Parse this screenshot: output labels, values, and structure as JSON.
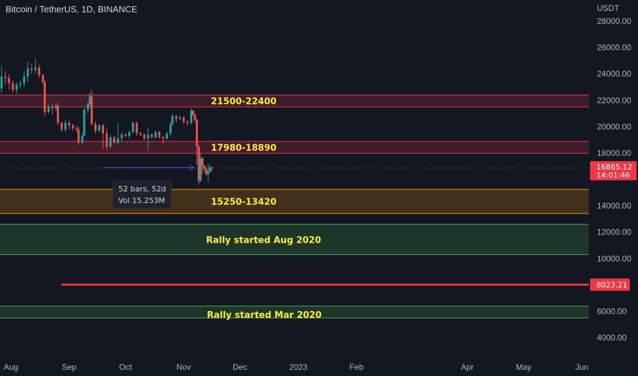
{
  "header": {
    "title": "Bitcoin / TetherUS, 1D, BINANCE"
  },
  "colors": {
    "background": "#131722",
    "up": "#26a69a",
    "down": "#ef5350",
    "red_zone": "#f23645",
    "orange_zone": "#ff9800",
    "green_zone": "#4caf50",
    "label": "#ffeb3b"
  },
  "chart_data": {
    "type": "candlestick",
    "currency": "USDT",
    "ylim": [
      3500,
      29500
    ],
    "y_ticks": [
      {
        "value": 28000,
        "label": "28000.00"
      },
      {
        "value": 26000,
        "label": "26000.00"
      },
      {
        "value": 24000,
        "label": "24000.00"
      },
      {
        "value": 22000,
        "label": "22000.00"
      },
      {
        "value": 20000,
        "label": "20000.00"
      },
      {
        "value": 18000,
        "label": "18000.00"
      },
      {
        "value": 14000,
        "label": "14000.00"
      },
      {
        "value": 12000,
        "label": "12000.00"
      },
      {
        "value": 10000,
        "label": "10000.00"
      },
      {
        "value": 6000,
        "label": "6000.00"
      },
      {
        "value": 4000,
        "label": "4000.00"
      }
    ],
    "x_ticks": [
      {
        "date": "2022-08-01",
        "label": "Aug"
      },
      {
        "date": "2022-09-01",
        "label": "Sep"
      },
      {
        "date": "2022-10-01",
        "label": "Oct"
      },
      {
        "date": "2022-11-01",
        "label": "Nov"
      },
      {
        "date": "2022-12-01",
        "label": "Dec"
      },
      {
        "date": "2023-01-01",
        "label": "2023"
      },
      {
        "date": "2023-02-01",
        "label": "Feb"
      },
      {
        "date": "2023-04-01",
        "label": "Apr"
      },
      {
        "date": "2023-05-01",
        "label": "May"
      },
      {
        "date": "2023-06-01",
        "label": "Jun"
      }
    ],
    "zones": [
      {
        "low": 21500,
        "high": 22400,
        "label": "21500-22400",
        "color": "#f23645"
      },
      {
        "low": 17980,
        "high": 18890,
        "label": "17980-18890",
        "color": "#f23645"
      },
      {
        "low": 13420,
        "high": 15250,
        "label": "15250-13420",
        "color": "#ff9800"
      },
      {
        "low": 10300,
        "high": 12600,
        "label": "Rally started Aug 2020",
        "color": "#4caf50"
      },
      {
        "low": 5500,
        "high": 6400,
        "label": "Rally started Mar 2020",
        "color": "#4caf50"
      }
    ],
    "horizontal_line": {
      "value": 8023.21,
      "label": "8023.21",
      "color": "#f23645",
      "start_date": "2022-08-28"
    },
    "last_price": {
      "value": 16865.12,
      "label": "16865.12",
      "countdown": "14:01:46"
    },
    "measure": {
      "from": "2022-09-19",
      "to": "2022-11-10",
      "value": 16900,
      "bars": "52 bars, 52d",
      "volume": "Vol 15.253M"
    },
    "candles": [
      {
        "date": "2022-07-25",
        "o": 21300,
        "h": 23300,
        "l": 20800,
        "c": 22900
      },
      {
        "date": "2022-07-27",
        "o": 22900,
        "h": 24600,
        "l": 22600,
        "c": 23800
      },
      {
        "date": "2022-07-29",
        "o": 23800,
        "h": 24200,
        "l": 23200,
        "c": 23700
      },
      {
        "date": "2022-07-31",
        "o": 23700,
        "h": 24000,
        "l": 22800,
        "c": 23300
      },
      {
        "date": "2022-08-02",
        "o": 23300,
        "h": 23500,
        "l": 22600,
        "c": 22800
      },
      {
        "date": "2022-08-04",
        "o": 22800,
        "h": 23400,
        "l": 22500,
        "c": 23200
      },
      {
        "date": "2022-08-06",
        "o": 23200,
        "h": 23500,
        "l": 22900,
        "c": 23300
      },
      {
        "date": "2022-08-08",
        "o": 23300,
        "h": 24200,
        "l": 23000,
        "c": 23800
      },
      {
        "date": "2022-08-10",
        "o": 23800,
        "h": 24900,
        "l": 23400,
        "c": 24400
      },
      {
        "date": "2022-08-12",
        "o": 24400,
        "h": 24800,
        "l": 24000,
        "c": 24300
      },
      {
        "date": "2022-08-14",
        "o": 24300,
        "h": 25200,
        "l": 24000,
        "c": 24500
      },
      {
        "date": "2022-08-16",
        "o": 24500,
        "h": 24700,
        "l": 23700,
        "c": 23900
      },
      {
        "date": "2022-08-18",
        "o": 23900,
        "h": 24000,
        "l": 23200,
        "c": 23400
      },
      {
        "date": "2022-08-19",
        "o": 23400,
        "h": 23500,
        "l": 20800,
        "c": 21100
      },
      {
        "date": "2022-08-21",
        "o": 21100,
        "h": 21700,
        "l": 21000,
        "c": 21500
      },
      {
        "date": "2022-08-23",
        "o": 21500,
        "h": 21700,
        "l": 20900,
        "c": 21400
      },
      {
        "date": "2022-08-25",
        "o": 21400,
        "h": 21800,
        "l": 21200,
        "c": 21600
      },
      {
        "date": "2022-08-26",
        "o": 21600,
        "h": 21800,
        "l": 20100,
        "c": 20300
      },
      {
        "date": "2022-08-28",
        "o": 20300,
        "h": 20400,
        "l": 19600,
        "c": 19800
      },
      {
        "date": "2022-08-30",
        "o": 19800,
        "h": 20500,
        "l": 19600,
        "c": 20300
      },
      {
        "date": "2022-09-01",
        "o": 20300,
        "h": 20500,
        "l": 19800,
        "c": 20100
      },
      {
        "date": "2022-09-03",
        "o": 20100,
        "h": 20200,
        "l": 19700,
        "c": 19900
      },
      {
        "date": "2022-09-05",
        "o": 19900,
        "h": 20100,
        "l": 19600,
        "c": 19800
      },
      {
        "date": "2022-09-06",
        "o": 19800,
        "h": 20000,
        "l": 18600,
        "c": 18800
      },
      {
        "date": "2022-09-08",
        "o": 18800,
        "h": 19500,
        "l": 18700,
        "c": 19300
      },
      {
        "date": "2022-09-09",
        "o": 19300,
        "h": 21400,
        "l": 19300,
        "c": 21300
      },
      {
        "date": "2022-09-11",
        "o": 21300,
        "h": 21900,
        "l": 21000,
        "c": 21700
      },
      {
        "date": "2022-09-12",
        "o": 21700,
        "h": 22600,
        "l": 21500,
        "c": 22300
      },
      {
        "date": "2022-09-13",
        "o": 22300,
        "h": 22800,
        "l": 20100,
        "c": 20200
      },
      {
        "date": "2022-09-15",
        "o": 20200,
        "h": 20400,
        "l": 19500,
        "c": 19700
      },
      {
        "date": "2022-09-17",
        "o": 19700,
        "h": 20200,
        "l": 19600,
        "c": 20100
      },
      {
        "date": "2022-09-19",
        "o": 20100,
        "h": 20200,
        "l": 18300,
        "c": 19500
      },
      {
        "date": "2022-09-21",
        "o": 19500,
        "h": 19900,
        "l": 18200,
        "c": 18500
      },
      {
        "date": "2022-09-23",
        "o": 18500,
        "h": 19400,
        "l": 18400,
        "c": 19200
      },
      {
        "date": "2022-09-25",
        "o": 19200,
        "h": 19300,
        "l": 18700,
        "c": 18800
      },
      {
        "date": "2022-09-27",
        "o": 18800,
        "h": 20300,
        "l": 18700,
        "c": 19100
      },
      {
        "date": "2022-09-29",
        "o": 19100,
        "h": 19600,
        "l": 18900,
        "c": 19400
      },
      {
        "date": "2022-10-01",
        "o": 19400,
        "h": 19500,
        "l": 19200,
        "c": 19300
      },
      {
        "date": "2022-10-03",
        "o": 19300,
        "h": 19700,
        "l": 19100,
        "c": 19600
      },
      {
        "date": "2022-10-05",
        "o": 19600,
        "h": 20400,
        "l": 19500,
        "c": 20300
      },
      {
        "date": "2022-10-07",
        "o": 20300,
        "h": 20400,
        "l": 19300,
        "c": 19500
      },
      {
        "date": "2022-10-09",
        "o": 19500,
        "h": 19600,
        "l": 19300,
        "c": 19400
      },
      {
        "date": "2022-10-11",
        "o": 19400,
        "h": 19500,
        "l": 19000,
        "c": 19100
      },
      {
        "date": "2022-10-13",
        "o": 19100,
        "h": 19900,
        "l": 18200,
        "c": 19400
      },
      {
        "date": "2022-10-15",
        "o": 19400,
        "h": 19500,
        "l": 19100,
        "c": 19200
      },
      {
        "date": "2022-10-17",
        "o": 19200,
        "h": 19700,
        "l": 19100,
        "c": 19600
      },
      {
        "date": "2022-10-19",
        "o": 19600,
        "h": 19700,
        "l": 19100,
        "c": 19200
      },
      {
        "date": "2022-10-21",
        "o": 19200,
        "h": 19300,
        "l": 18700,
        "c": 19100
      },
      {
        "date": "2022-10-23",
        "o": 19100,
        "h": 19600,
        "l": 19000,
        "c": 19500
      },
      {
        "date": "2022-10-25",
        "o": 19500,
        "h": 20400,
        "l": 19300,
        "c": 20200
      },
      {
        "date": "2022-10-26",
        "o": 20200,
        "h": 21000,
        "l": 20100,
        "c": 20800
      },
      {
        "date": "2022-10-28",
        "o": 20800,
        "h": 20900,
        "l": 20300,
        "c": 20600
      },
      {
        "date": "2022-10-30",
        "o": 20600,
        "h": 20900,
        "l": 20500,
        "c": 20700
      },
      {
        "date": "2022-11-01",
        "o": 20700,
        "h": 20800,
        "l": 20200,
        "c": 20400
      },
      {
        "date": "2022-11-03",
        "o": 20400,
        "h": 20500,
        "l": 20100,
        "c": 20300
      },
      {
        "date": "2022-11-05",
        "o": 20300,
        "h": 21400,
        "l": 20200,
        "c": 21200
      },
      {
        "date": "2022-11-06",
        "o": 21200,
        "h": 21300,
        "l": 20800,
        "c": 20900
      },
      {
        "date": "2022-11-07",
        "o": 20900,
        "h": 21000,
        "l": 20300,
        "c": 20500
      },
      {
        "date": "2022-11-08",
        "o": 20500,
        "h": 20600,
        "l": 17100,
        "c": 18500
      },
      {
        "date": "2022-11-09",
        "o": 18500,
        "h": 18600,
        "l": 15600,
        "c": 15900
      },
      {
        "date": "2022-11-10",
        "o": 15900,
        "h": 18000,
        "l": 15800,
        "c": 17600
      },
      {
        "date": "2022-11-11",
        "o": 17600,
        "h": 17700,
        "l": 16400,
        "c": 17000
      },
      {
        "date": "2022-11-12",
        "o": 17000,
        "h": 17100,
        "l": 16600,
        "c": 16800
      },
      {
        "date": "2022-11-13",
        "o": 16800,
        "h": 16900,
        "l": 16300,
        "c": 16400
      },
      {
        "date": "2022-11-14",
        "o": 16400,
        "h": 17200,
        "l": 15800,
        "c": 16600
      },
      {
        "date": "2022-11-15",
        "o": 16600,
        "h": 17100,
        "l": 16500,
        "c": 16900
      },
      {
        "date": "2022-11-16",
        "o": 16900,
        "h": 17000,
        "l": 16600,
        "c": 16865.12
      }
    ]
  }
}
